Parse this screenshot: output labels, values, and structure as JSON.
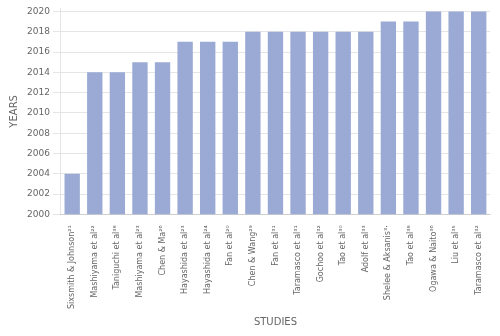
{
  "chart_data": {
    "type": "bar",
    "categories": [
      "Sixsmith & Johnson²¹",
      "Mashiyama et al²²",
      "Taniguchi et al³⁸",
      "Mashiyama et al²³",
      "Chen & Ma²⁶",
      "Hayashida et al²³",
      "Hayashida et al²⁴",
      "Fan et al²⁰",
      "Chen & Wang²⁹",
      "Fan et al³¹",
      "Taramasco et al³¹",
      "Gochoo et al³²",
      "Tao et al³⁰",
      "Adolf et al³³",
      "Shelee & Aksanis³·",
      "Tao et al³⁸",
      "Ogawa & Naito³⁶",
      "Liu et al³⁵",
      "Taramasco et al³²"
    ],
    "values": [
      2004,
      2014,
      2014,
      2015,
      2015,
      2017,
      2017,
      2017,
      2018,
      2018,
      2018,
      2018,
      2018,
      2018,
      2019,
      2019,
      2020,
      2020,
      2020
    ],
    "color": "#9aaad4",
    "xlabel": "STUDIES",
    "ylabel": "YEARS",
    "ylim": [
      2000,
      2020.3
    ],
    "yticks": [
      2000,
      2002,
      2004,
      2006,
      2008,
      2010,
      2012,
      2014,
      2016,
      2018,
      2020
    ],
    "grid": true
  }
}
